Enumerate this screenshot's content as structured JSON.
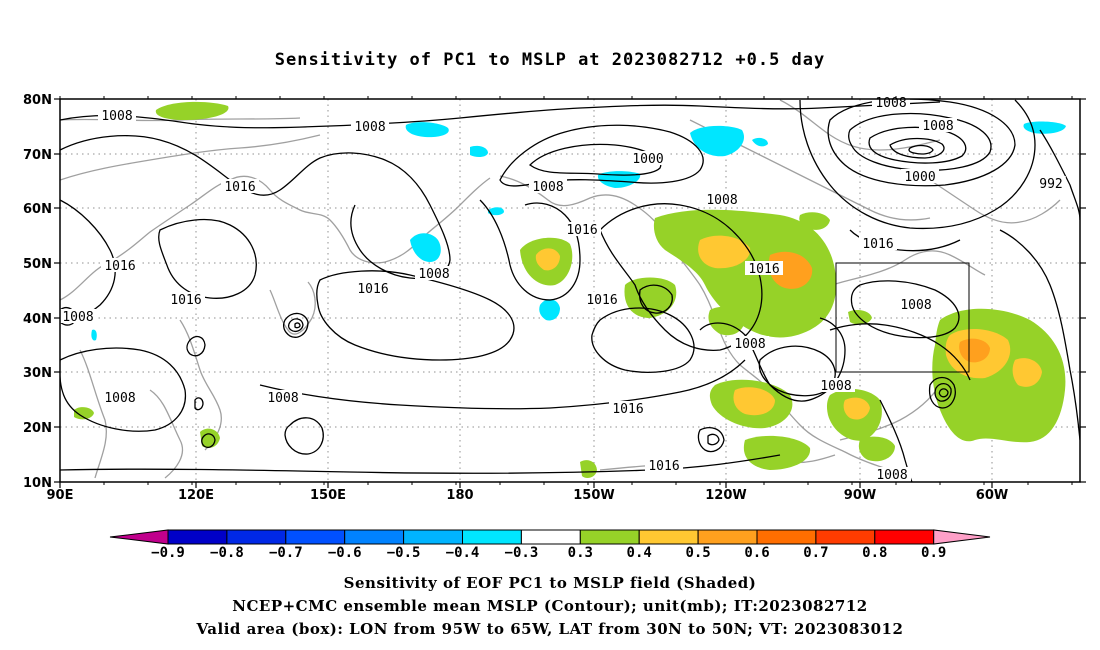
{
  "title": "Sensitivity of PC1 to MSLP at 2023082712 +0.5 day",
  "map": {
    "lat_labels": [
      "80N",
      "70N",
      "60N",
      "50N",
      "40N",
      "30N",
      "20N",
      "10N"
    ],
    "lon_labels": [
      "90E",
      "120E",
      "150E",
      "180",
      "150W",
      "120W",
      "90W",
      "60W"
    ],
    "valid_box": {
      "lon_west": -95,
      "lon_east": -65,
      "lat_south": 30,
      "lat_north": 50
    },
    "contour_labels": [
      "1008",
      "1008",
      "1016",
      "1016",
      "1016",
      "1008",
      "1008",
      "1016",
      "1008",
      "1016",
      "1008",
      "1000",
      "1008",
      "1016",
      "1008",
      "1016",
      "1016",
      "1008",
      "1008",
      "1008",
      "1000",
      "992",
      "1016",
      "1008",
      "1008",
      "1016",
      "1008"
    ],
    "contour_color": "#000000",
    "coastline_color": "#a0a0a0",
    "gridline_color": "#909090"
  },
  "colorbar": {
    "labels": [
      "-0.9",
      "-0.8",
      "-0.7",
      "-0.6",
      "-0.5",
      "-0.4",
      "-0.3",
      "0.3",
      "0.4",
      "0.5",
      "0.6",
      "0.7",
      "0.8",
      "0.9"
    ],
    "colors": [
      "#0000c8",
      "#0028e6",
      "#0050ff",
      "#0082ff",
      "#00b4ff",
      "#00e6ff",
      "#ffffff",
      "#96d228",
      "#ffc832",
      "#ffa01e",
      "#ff6e00",
      "#ff3c00",
      "#ff0000"
    ],
    "left_arrow_color": "#c0008c",
    "right_arrow_color": "#ffa0c8"
  },
  "captions": {
    "line1": "Sensitivity of EOF PC1 to MSLP field (Shaded)",
    "line2": "NCEP+CMC ensemble mean MSLP (Contour); unit(mb); IT:2023082712",
    "line3": "Valid area (box): LON from 95W to 65W, LAT from 30N to 50N; VT: 2023083012"
  }
}
